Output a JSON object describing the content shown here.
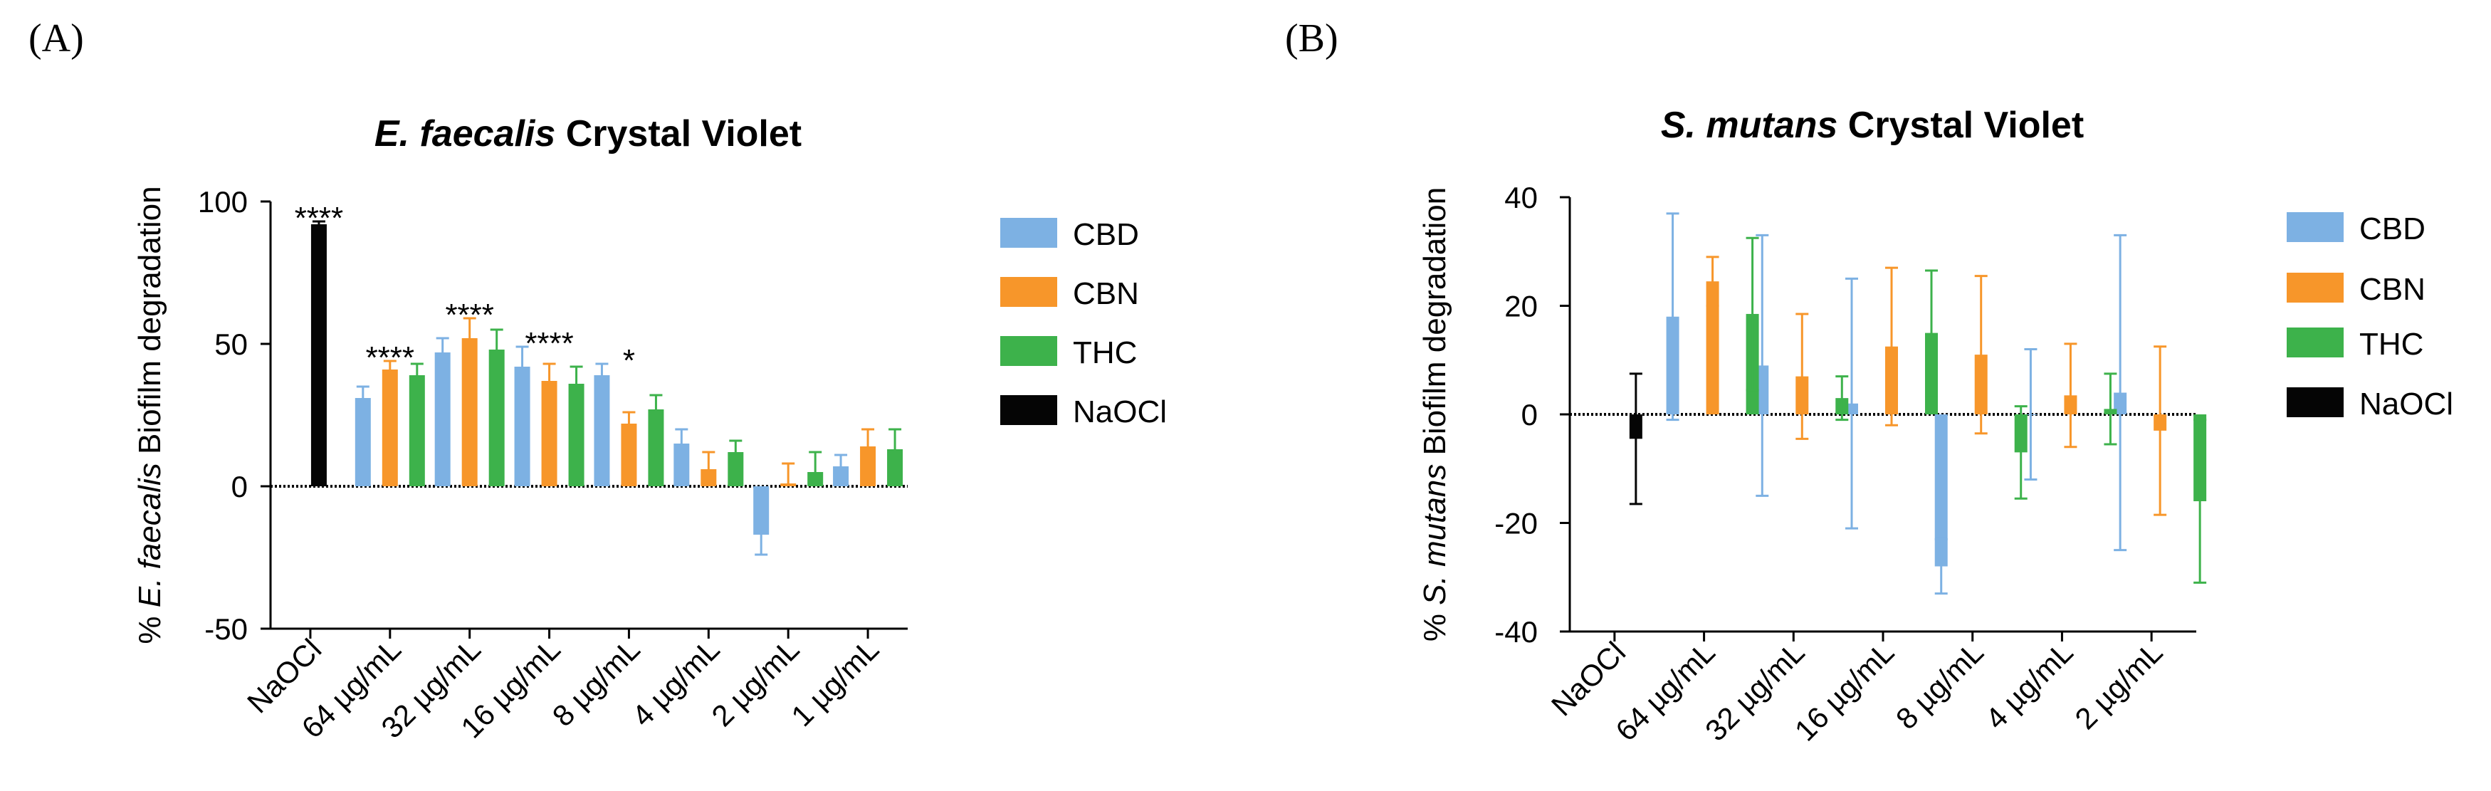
{
  "chart_data": [
    {
      "type": "bar",
      "panel_label": "(A)",
      "title_italic": "E. faecalis",
      "title_rest": " Crystal Violet",
      "ylabel_prefix": "% ",
      "ylabel_italic": "E. faecalis",
      "ylabel_rest": " Biofilm degradation",
      "ylim": [
        -50,
        100
      ],
      "yticks": [
        -50,
        0,
        50,
        100
      ],
      "ytick_labels": [
        "-50",
        "0",
        "50",
        "100"
      ],
      "categories": [
        "NaOCl",
        "64 µg/mL",
        "32 µg/mL",
        "16 µg/mL",
        "8 µg/mL",
        "4 µg/mL",
        "2 µg/mL",
        "1 µg/mL"
      ],
      "series": [
        {
          "name": "CBD",
          "color": "#7DB1E3",
          "values": [
            null,
            31,
            47,
            42,
            39,
            15,
            -17,
            7
          ],
          "errors": [
            null,
            4,
            5,
            7,
            4,
            5,
            7,
            4
          ]
        },
        {
          "name": "CBN",
          "color": "#F7962A",
          "values": [
            null,
            41,
            52,
            37,
            22,
            6,
            1,
            14
          ],
          "errors": [
            null,
            3,
            7,
            6,
            4,
            6,
            7,
            6
          ]
        },
        {
          "name": "THC",
          "color": "#3DB24B",
          "values": [
            null,
            39,
            48,
            36,
            27,
            12,
            5,
            13
          ],
          "errors": [
            null,
            4,
            7,
            6,
            5,
            4,
            7,
            7
          ]
        },
        {
          "name": "NaOCl",
          "color": "#050505",
          "values": [
            92,
            null,
            null,
            null,
            null,
            null,
            null,
            null
          ],
          "errors": [
            1,
            null,
            null,
            null,
            null,
            null,
            null,
            null
          ]
        }
      ],
      "annotations": [
        {
          "category": "NaOCl",
          "text": "****",
          "y": 94
        },
        {
          "category": "64 µg/mL",
          "text": "****",
          "y": 45
        },
        {
          "category": "32 µg/mL",
          "text": "****",
          "y": 60
        },
        {
          "category": "16 µg/mL",
          "text": "****",
          "y": 50
        },
        {
          "category": "8 µg/mL",
          "text": "*",
          "y": 44
        }
      ],
      "legend": [
        "CBD",
        "CBN",
        "THC",
        "NaOCl"
      ]
    },
    {
      "type": "bar",
      "panel_label": "(B)",
      "title_italic": "S. mutans",
      "title_rest": " Crystal Violet",
      "ylabel_prefix": "% ",
      "ylabel_italic": "S. mutans",
      "ylabel_rest": " Biofilm degradation",
      "ylim": [
        -40,
        40
      ],
      "yticks": [
        -40,
        -20,
        0,
        20,
        40
      ],
      "ytick_labels": [
        "-40",
        "-20",
        "0",
        "20",
        "40"
      ],
      "categories": [
        "NaOCl",
        "64 µg/mL",
        "32 µg/mL",
        "16 µg/mL",
        "8 µg/mL",
        "4 µg/mL",
        "2 µg/mL"
      ],
      "series": [
        {
          "name": "CBD",
          "color": "#7DB1E3",
          "values": [
            null,
            18,
            9,
            2,
            -28,
            0,
            4
          ],
          "errors": [
            null,
            19,
            24,
            23,
            5,
            12,
            29
          ]
        },
        {
          "name": "CBN",
          "color": "#F7962A",
          "values": [
            null,
            24.5,
            7,
            12.5,
            11,
            3.5,
            -3
          ],
          "errors": [
            null,
            4.5,
            11.5,
            14.5,
            14.5,
            9.5,
            15.5
          ]
        },
        {
          "name": "THC",
          "color": "#3DB24B",
          "values": [
            null,
            18.5,
            3,
            15,
            -7,
            1,
            -16
          ],
          "errors": [
            null,
            14,
            4,
            11.5,
            8.5,
            6.5,
            15
          ]
        },
        {
          "name": "NaOCl",
          "color": "#050505",
          "values": [
            -4.5,
            null,
            null,
            null,
            null,
            null,
            null
          ],
          "errors": [
            12,
            null,
            null,
            null,
            null,
            null,
            null
          ]
        }
      ],
      "annotations": [],
      "legend": [
        "CBD",
        "CBN",
        "THC",
        "NaOCl"
      ]
    }
  ]
}
